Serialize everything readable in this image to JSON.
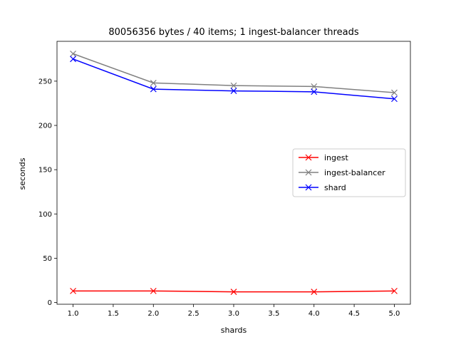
{
  "chart_data": {
    "type": "line",
    "title": "80056356 bytes / 40 items; 1 ingest-balancer threads",
    "xlabel": "shards",
    "ylabel": "seconds",
    "x": [
      1.0,
      2.0,
      3.0,
      4.0,
      5.0
    ],
    "xlim": [
      0.8,
      5.2
    ],
    "ylim": [
      -2,
      295
    ],
    "xticks": [
      "1.0",
      "1.5",
      "2.0",
      "2.5",
      "3.0",
      "3.5",
      "4.0",
      "4.5",
      "5.0"
    ],
    "yticks": [
      "0",
      "50",
      "100",
      "150",
      "200",
      "250"
    ],
    "grid": false,
    "legend_position": "center-right",
    "series": [
      {
        "name": "ingest",
        "color": "#ff0000",
        "values": [
          13,
          13,
          12,
          12,
          13
        ]
      },
      {
        "name": "ingest-balancer",
        "color": "#808080",
        "values": [
          281,
          248,
          245,
          244,
          237
        ]
      },
      {
        "name": "shard",
        "color": "#0000ff",
        "values": [
          275,
          241,
          239,
          238,
          230
        ]
      }
    ]
  }
}
